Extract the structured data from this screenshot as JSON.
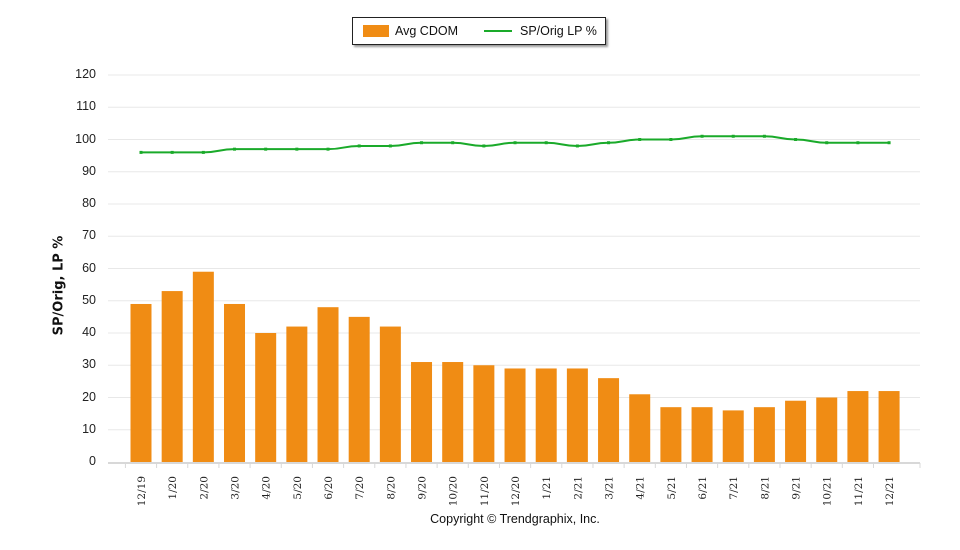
{
  "legend": {
    "bar_label": "Avg CDOM",
    "line_label": "SP/Orig LP %"
  },
  "colors": {
    "bar": "#F08C14",
    "line": "#1AAA2A",
    "grid": "#E8E8E8",
    "axis": "#D8D8D8"
  },
  "copyright": "Copyright © Trendgraphix, Inc.",
  "chart_data": {
    "type": "bar+line",
    "title": "",
    "xlabel": "",
    "ylabel": "SP/Orig, LP %",
    "ylim": [
      0,
      120
    ],
    "yticks": [
      0,
      10,
      20,
      30,
      40,
      50,
      60,
      70,
      80,
      90,
      100,
      110,
      120
    ],
    "grid": true,
    "legend_position": "top",
    "categories": [
      "12/19",
      "1/20",
      "2/20",
      "3/20",
      "4/20",
      "5/20",
      "6/20",
      "7/20",
      "8/20",
      "9/20",
      "10/20",
      "11/20",
      "12/20",
      "1/21",
      "2/21",
      "3/21",
      "4/21",
      "5/21",
      "6/21",
      "7/21",
      "8/21",
      "9/21",
      "10/21",
      "11/21",
      "12/21"
    ],
    "series": [
      {
        "name": "Avg CDOM",
        "type": "bar",
        "values": [
          49,
          53,
          59,
          49,
          40,
          42,
          48,
          45,
          42,
          31,
          31,
          30,
          29,
          29,
          29,
          26,
          21,
          17,
          17,
          16,
          17,
          19,
          20,
          22,
          22
        ]
      },
      {
        "name": "SP/Orig LP %",
        "type": "line",
        "values": [
          96,
          96,
          96,
          97,
          97,
          97,
          97,
          98,
          98,
          99,
          99,
          98,
          99,
          99,
          98,
          99,
          100,
          100,
          101,
          101,
          101,
          100,
          99,
          99,
          99
        ]
      }
    ]
  }
}
